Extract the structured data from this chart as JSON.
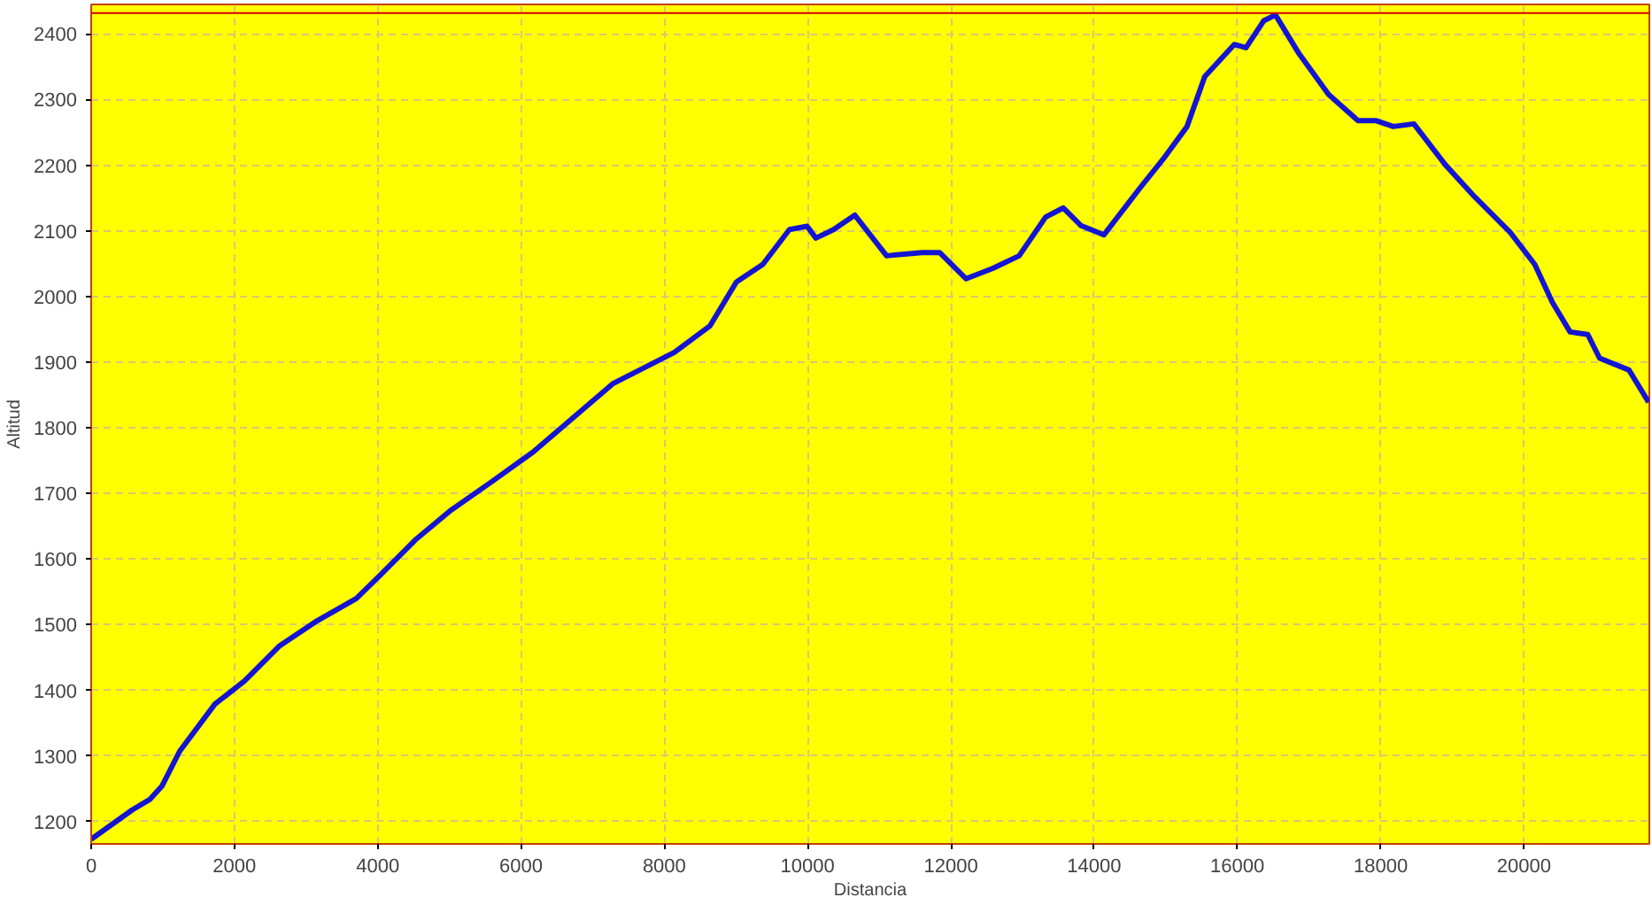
{
  "chart_data": {
    "type": "line",
    "xlabel": "Distancia",
    "ylabel": "Altitud",
    "xlim": [
      0,
      21750
    ],
    "ylim": [
      1166,
      2445
    ],
    "xticks": [
      0,
      2000,
      4000,
      6000,
      8000,
      10000,
      12000,
      14000,
      16000,
      18000,
      20000
    ],
    "yticks": [
      1200,
      1300,
      1400,
      1500,
      1600,
      1700,
      1800,
      1900,
      2000,
      2100,
      2200,
      2300,
      2400
    ],
    "grid": true,
    "marker": "none",
    "line_style": "solid",
    "ref_lines": [
      {
        "axis": "y",
        "value": 2432,
        "label": null,
        "color": "#d00000",
        "line_style": "solid"
      }
    ],
    "series": [
      {
        "color": "#1414d2",
        "x": [
          0,
          575,
          822,
          987,
          1234,
          1727,
          2138,
          2632,
          3126,
          3701,
          4030,
          4523,
          5016,
          5593,
          6168,
          7279,
          8142,
          8636,
          9006,
          9376,
          9746,
          9993,
          10116,
          10363,
          10659,
          11103,
          11597,
          11843,
          12213,
          12587,
          12953,
          13323,
          13570,
          13817,
          14137,
          14638,
          14968,
          15297,
          15544,
          15956,
          16120,
          16366,
          16531,
          16860,
          17271,
          17683,
          17930,
          18177,
          18463,
          18900,
          19311,
          19805,
          20150,
          20397,
          20644,
          20891,
          21056,
          21466,
          21740
        ],
        "values": [
          1173,
          1218,
          1234,
          1254,
          1307,
          1379,
          1414,
          1468,
          1504,
          1540,
          1575,
          1629,
          1674,
          1718,
          1763,
          1867,
          1915,
          1955,
          2022,
          2049,
          2102,
          2107,
          2089,
          2102,
          2124,
          2062,
          2067,
          2067,
          2027,
          2043,
          2062,
          2121,
          2135,
          2108,
          2094,
          2165,
          2210,
          2259,
          2335,
          2384,
          2379,
          2420,
          2429,
          2370,
          2308,
          2268,
          2268,
          2259,
          2263,
          2201,
          2152,
          2098,
          2049,
          1991,
          1946,
          1942,
          1906,
          1888,
          1839
        ]
      }
    ]
  }
}
